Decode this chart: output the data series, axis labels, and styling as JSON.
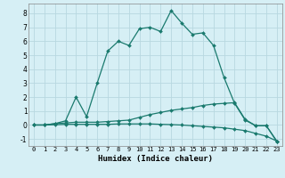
{
  "xlabel": "Humidex (Indice chaleur)",
  "bg_color": "#d6eff5",
  "grid_color": "#b8d8e0",
  "line_color": "#1a7a6e",
  "xlim": [
    -0.5,
    23.5
  ],
  "ylim": [
    -1.5,
    8.7
  ],
  "xticks": [
    0,
    1,
    2,
    3,
    4,
    5,
    6,
    7,
    8,
    9,
    10,
    11,
    12,
    13,
    14,
    15,
    16,
    17,
    18,
    19,
    20,
    21,
    22,
    23
  ],
  "yticks": [
    -1,
    0,
    1,
    2,
    3,
    4,
    5,
    6,
    7,
    8
  ],
  "series": [
    {
      "x": [
        0,
        1,
        2,
        3,
        4,
        5,
        6,
        7,
        8,
        9,
        10,
        11,
        12,
        13,
        14,
        15,
        16,
        17,
        18,
        19,
        20,
        21,
        22,
        23
      ],
      "y": [
        0,
        0,
        0.1,
        0.3,
        2.0,
        0.6,
        3.0,
        5.3,
        6.0,
        5.7,
        6.9,
        7.0,
        6.7,
        8.2,
        7.3,
        6.5,
        6.6,
        5.7,
        3.4,
        1.55,
        0.35,
        -0.05,
        -0.05,
        -1.15
      ]
    },
    {
      "x": [
        0,
        1,
        2,
        3,
        4,
        5,
        6,
        7,
        8,
        9,
        10,
        11,
        12,
        13,
        14,
        15,
        16,
        17,
        18,
        19,
        20,
        21,
        22,
        23
      ],
      "y": [
        0,
        0,
        0.1,
        0.15,
        0.2,
        0.2,
        0.2,
        0.25,
        0.3,
        0.35,
        0.55,
        0.75,
        0.9,
        1.05,
        1.15,
        1.25,
        1.4,
        1.5,
        1.55,
        1.6,
        0.4,
        -0.05,
        -0.05,
        -1.2
      ]
    },
    {
      "x": [
        0,
        1,
        2,
        3,
        4,
        5,
        6,
        7,
        8,
        9,
        10,
        11,
        12,
        13,
        14,
        15,
        16,
        17,
        18,
        19,
        20,
        21,
        22,
        23
      ],
      "y": [
        0,
        0,
        0.02,
        0.05,
        0.05,
        0.05,
        0.05,
        0.05,
        0.08,
        0.08,
        0.08,
        0.08,
        0.05,
        0.03,
        0,
        -0.05,
        -0.1,
        -0.15,
        -0.2,
        -0.3,
        -0.4,
        -0.6,
        -0.8,
        -1.15
      ]
    }
  ]
}
